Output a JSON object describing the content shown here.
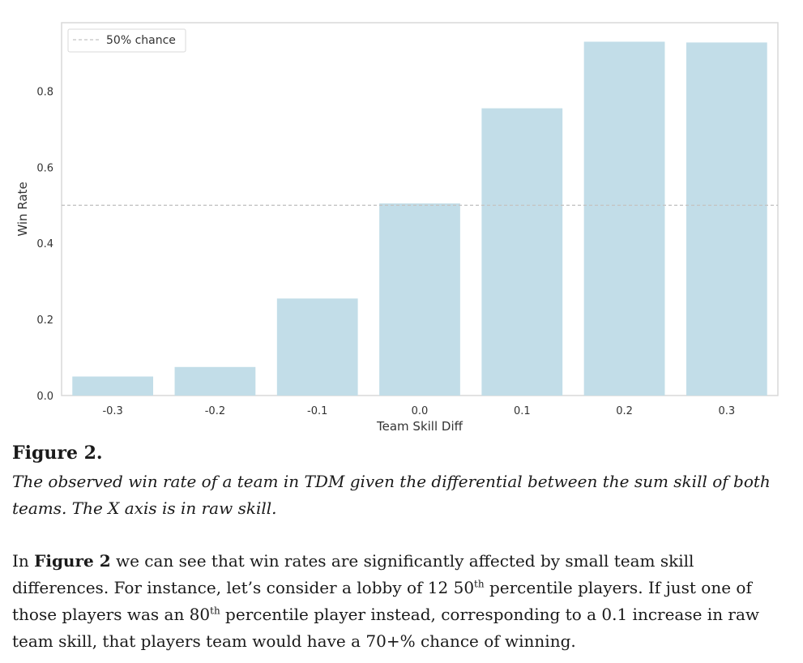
{
  "chart_data": {
    "type": "bar",
    "categories": [
      "-0.3",
      "-0.2",
      "-0.1",
      "0.0",
      "0.1",
      "0.2",
      "0.3"
    ],
    "values": [
      0.05,
      0.075,
      0.255,
      0.505,
      0.755,
      0.93,
      0.928
    ],
    "title": "",
    "xlabel": "Team Skill Diff",
    "ylabel": "Win Rate",
    "ylim": [
      0,
      0.98
    ],
    "yticks": [
      "0.0",
      "0.2",
      "0.4",
      "0.6",
      "0.8"
    ],
    "ytick_values": [
      0.0,
      0.2,
      0.4,
      0.6,
      0.8
    ],
    "reference_line": {
      "value": 0.5,
      "label": "50% chance",
      "style": "dashed"
    },
    "legend_position": "top-left",
    "grid": false,
    "bar_color": "#c2dde8",
    "ref_line_color": "#c4c4c4"
  },
  "figure": {
    "label": "Figure 2.",
    "caption": "The observed win rate of a team in TDM given the differential between the sum skill of both teams. The X axis is in raw skill."
  },
  "body": {
    "p1": "In ",
    "p1_bold": "Figure 2",
    "p2": " we can see that win rates are significantly affected by small team skill differences. For instance, let’s consider a lobby of 12 50",
    "sup1": "th",
    "p3": " percentile players. If just one of those players was an 80",
    "sup2": "th",
    "p4": " percentile player instead, corresponding to a 0.1 increase in raw team skill, that players team would have a 70+% chance of winning."
  }
}
